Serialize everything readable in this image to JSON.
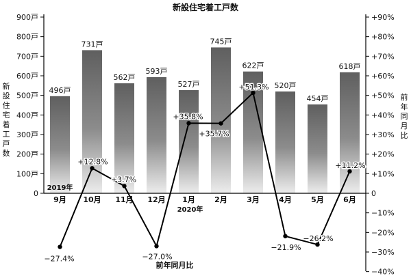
{
  "chart_data": {
    "type": "bar",
    "title": "新設住宅着工戸数",
    "categories": [
      "9月",
      "10月",
      "11月",
      "12月",
      "1月",
      "2月",
      "3月",
      "4月",
      "5月",
      "6月"
    ],
    "year_labels": [
      {
        "label": "2019年",
        "category": "9月"
      },
      {
        "label": "2020年",
        "category": "1月"
      }
    ],
    "series": [
      {
        "name": "新設住宅着工戸数",
        "axis": "left",
        "type": "bar",
        "values": [
          496,
          731,
          562,
          593,
          527,
          745,
          622,
          520,
          454,
          618
        ],
        "data_labels": [
          "496戸",
          "731戸",
          "562戸",
          "593戸",
          "527戸",
          "745戸",
          "622戸",
          "520戸",
          "454戸",
          "618戸"
        ]
      },
      {
        "name": "前年同月比",
        "axis": "right",
        "type": "line",
        "values": [
          -27.4,
          12.8,
          3.7,
          -27.0,
          35.8,
          35.7,
          51.3,
          -21.9,
          -26.2,
          11.2
        ],
        "data_labels": [
          "−27.4%",
          "+12.8%",
          "+3.7%",
          "−27.0%",
          "+35.8%",
          "+35.7%",
          "+51.3%",
          "−21.9%",
          "−26.2%",
          "+11.2%"
        ]
      }
    ],
    "left_axis": {
      "label": "新設住宅着工戸数",
      "range": [
        0,
        900
      ],
      "ticks": [
        0,
        100,
        200,
        300,
        400,
        500,
        600,
        700,
        800,
        900
      ],
      "tick_labels": [
        "0",
        "100戸",
        "200戸",
        "300戸",
        "400戸",
        "500戸",
        "600戸",
        "700戸",
        "800戸",
        "900戸"
      ]
    },
    "right_axis": {
      "label": "前年同月比",
      "range": [
        -40,
        90
      ],
      "ticks": [
        90,
        80,
        70,
        60,
        50,
        40,
        30,
        20,
        10,
        0,
        -10,
        -20,
        -30,
        -40
      ],
      "tick_labels": [
        "+90%",
        "+80%",
        "+70%",
        "+60%",
        "+50%",
        "+40%",
        "+30%",
        "+20%",
        "+10%",
        "0",
        "−10%",
        "−20%",
        "−30%",
        "−40%"
      ]
    },
    "bottom_label": "前年同月比",
    "grid": false,
    "colors": {
      "bar_top": "#5f5f5f",
      "bar_bottom": "#ededed",
      "line": "#000000",
      "axis": "#000000"
    }
  }
}
